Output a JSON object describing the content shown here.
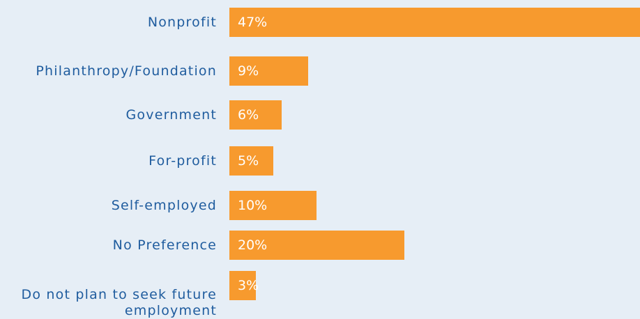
{
  "chart_data": {
    "type": "bar",
    "orientation": "horizontal",
    "categories": [
      "Nonprofit",
      "Philanthropy/Foundation",
      "Government",
      "For-profit",
      "Self-employed",
      "No Preference",
      "Do not plan to seek future employment"
    ],
    "values": [
      47,
      9,
      6,
      5,
      10,
      20,
      3
    ],
    "value_labels": [
      "47%",
      "9%",
      "6%",
      "5%",
      "10%",
      "20%",
      "3%"
    ],
    "color": "#f79a2e"
  }
}
